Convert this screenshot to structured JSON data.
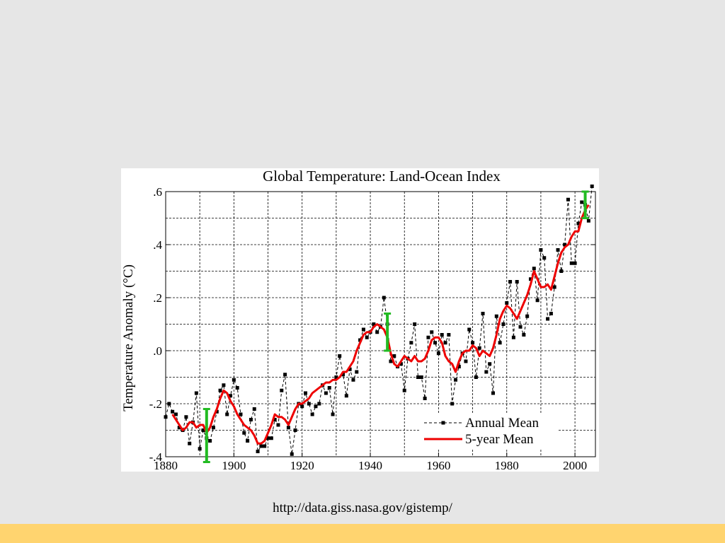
{
  "slide": {
    "source_url": "http://data.giss.nasa.gov/gistemp/",
    "footer_color": "#ffd46f",
    "background_color": "#e6e6e6"
  },
  "chart_data": {
    "type": "line",
    "title": "Global Temperature: Land-Ocean Index",
    "xlabel": "",
    "ylabel": "Temperature Anomaly (°C)",
    "xlim": [
      1880,
      2006
    ],
    "ylim": [
      -0.4,
      0.6
    ],
    "x_ticks": [
      1880,
      1900,
      1920,
      1940,
      1960,
      1980,
      2000
    ],
    "x_tick_labels": [
      "1880",
      "1900",
      "1920",
      "1940",
      "1960",
      "1980",
      "2000"
    ],
    "y_ticks": [
      -0.4,
      -0.2,
      0.0,
      0.2,
      0.4,
      0.6
    ],
    "y_tick_labels": [
      "-.4",
      "-.2",
      ".0",
      ".2",
      ".4",
      ".6"
    ],
    "grid": true,
    "legend_position": "bottom-right",
    "series": [
      {
        "name": "Annual Mean",
        "style": "dashed-black-square-markers",
        "color": "#000000",
        "x": [
          1880,
          1881,
          1882,
          1883,
          1884,
          1885,
          1886,
          1887,
          1888,
          1889,
          1890,
          1891,
          1892,
          1893,
          1894,
          1895,
          1896,
          1897,
          1898,
          1899,
          1900,
          1901,
          1902,
          1903,
          1904,
          1905,
          1906,
          1907,
          1908,
          1909,
          1910,
          1911,
          1912,
          1913,
          1914,
          1915,
          1916,
          1917,
          1918,
          1919,
          1920,
          1921,
          1922,
          1923,
          1924,
          1925,
          1926,
          1927,
          1928,
          1929,
          1930,
          1931,
          1932,
          1933,
          1934,
          1935,
          1936,
          1937,
          1938,
          1939,
          1940,
          1941,
          1942,
          1943,
          1944,
          1945,
          1946,
          1947,
          1948,
          1949,
          1950,
          1951,
          1952,
          1953,
          1954,
          1955,
          1956,
          1957,
          1958,
          1959,
          1960,
          1961,
          1962,
          1963,
          1964,
          1965,
          1966,
          1967,
          1968,
          1969,
          1970,
          1971,
          1972,
          1973,
          1974,
          1975,
          1976,
          1977,
          1978,
          1979,
          1980,
          1981,
          1982,
          1983,
          1984,
          1985,
          1986,
          1987,
          1988,
          1989,
          1990,
          1991,
          1992,
          1993,
          1994,
          1995,
          1996,
          1997,
          1998,
          1999,
          2000,
          2001,
          2002,
          2003,
          2004,
          2005
        ],
        "values": [
          -0.25,
          -0.2,
          -0.23,
          -0.24,
          -0.29,
          -0.3,
          -0.25,
          -0.35,
          -0.27,
          -0.16,
          -0.37,
          -0.3,
          -0.33,
          -0.34,
          -0.29,
          -0.23,
          -0.15,
          -0.13,
          -0.24,
          -0.17,
          -0.11,
          -0.14,
          -0.24,
          -0.31,
          -0.34,
          -0.26,
          -0.22,
          -0.38,
          -0.36,
          -0.36,
          -0.33,
          -0.33,
          -0.26,
          -0.28,
          -0.15,
          -0.09,
          -0.29,
          -0.39,
          -0.3,
          -0.2,
          -0.21,
          -0.16,
          -0.2,
          -0.24,
          -0.21,
          -0.2,
          -0.13,
          -0.16,
          -0.14,
          -0.24,
          -0.1,
          -0.02,
          -0.09,
          -0.17,
          -0.07,
          -0.11,
          -0.08,
          0.04,
          0.08,
          0.05,
          0.07,
          0.1,
          0.07,
          0.09,
          0.2,
          0.1,
          -0.04,
          -0.02,
          -0.06,
          -0.05,
          -0.15,
          -0.03,
          0.03,
          0.1,
          -0.1,
          -0.1,
          -0.18,
          0.05,
          0.07,
          0.03,
          -0.01,
          0.06,
          0.03,
          0.06,
          -0.2,
          -0.11,
          -0.06,
          -0.01,
          -0.04,
          0.08,
          0.03,
          -0.1,
          0.01,
          0.14,
          -0.08,
          -0.05,
          -0.16,
          0.13,
          0.03,
          0.1,
          0.18,
          0.26,
          0.05,
          0.26,
          0.09,
          0.06,
          0.13,
          0.27,
          0.31,
          0.19,
          0.38,
          0.35,
          0.12,
          0.14,
          0.24,
          0.38,
          0.3,
          0.4,
          0.57,
          0.33,
          0.33,
          0.48,
          0.56,
          0.55,
          0.49,
          0.62
        ]
      },
      {
        "name": "5-year Mean",
        "style": "solid-red-thick",
        "color": "#ee0000",
        "x": [
          1882,
          1883,
          1884,
          1885,
          1886,
          1887,
          1888,
          1889,
          1890,
          1891,
          1892,
          1893,
          1894,
          1895,
          1896,
          1897,
          1898,
          1899,
          1900,
          1901,
          1902,
          1903,
          1904,
          1905,
          1906,
          1907,
          1908,
          1909,
          1910,
          1911,
          1912,
          1913,
          1914,
          1915,
          1916,
          1917,
          1918,
          1919,
          1920,
          1921,
          1922,
          1923,
          1924,
          1925,
          1926,
          1927,
          1928,
          1929,
          1930,
          1931,
          1932,
          1933,
          1934,
          1935,
          1936,
          1937,
          1938,
          1939,
          1940,
          1941,
          1942,
          1943,
          1944,
          1945,
          1946,
          1947,
          1948,
          1949,
          1950,
          1951,
          1952,
          1953,
          1954,
          1955,
          1956,
          1957,
          1958,
          1959,
          1960,
          1961,
          1962,
          1963,
          1964,
          1965,
          1966,
          1967,
          1968,
          1969,
          1970,
          1971,
          1972,
          1973,
          1974,
          1975,
          1976,
          1977,
          1978,
          1979,
          1980,
          1981,
          1982,
          1983,
          1984,
          1985,
          1986,
          1987,
          1988,
          1989,
          1990,
          1991,
          1992,
          1993,
          1994,
          1995,
          1996,
          1997,
          1998,
          1999,
          2000,
          2001,
          2002,
          2003,
          2004
        ],
        "values": [
          -0.24,
          -0.26,
          -0.28,
          -0.3,
          -0.29,
          -0.27,
          -0.27,
          -0.29,
          -0.28,
          -0.28,
          -0.31,
          -0.29,
          -0.25,
          -0.22,
          -0.18,
          -0.15,
          -0.16,
          -0.19,
          -0.21,
          -0.24,
          -0.26,
          -0.28,
          -0.29,
          -0.3,
          -0.32,
          -0.35,
          -0.35,
          -0.34,
          -0.31,
          -0.28,
          -0.24,
          -0.25,
          -0.25,
          -0.26,
          -0.28,
          -0.25,
          -0.22,
          -0.2,
          -0.2,
          -0.19,
          -0.18,
          -0.16,
          -0.15,
          -0.14,
          -0.13,
          -0.12,
          -0.12,
          -0.11,
          -0.11,
          -0.1,
          -0.08,
          -0.08,
          -0.06,
          -0.04,
          0.0,
          0.03,
          0.06,
          0.07,
          0.07,
          0.09,
          0.1,
          0.09,
          0.08,
          0.05,
          -0.01,
          -0.05,
          -0.06,
          -0.04,
          -0.02,
          -0.03,
          -0.04,
          -0.02,
          -0.04,
          -0.04,
          -0.03,
          0.0,
          0.04,
          0.05,
          0.05,
          0.03,
          -0.02,
          -0.04,
          -0.05,
          -0.08,
          -0.04,
          -0.01,
          0.0,
          0.0,
          0.02,
          0.01,
          -0.02,
          0.0,
          -0.01,
          -0.02,
          0.01,
          0.06,
          0.12,
          0.15,
          0.17,
          0.16,
          0.14,
          0.12,
          0.15,
          0.18,
          0.21,
          0.25,
          0.3,
          0.27,
          0.24,
          0.24,
          0.25,
          0.23,
          0.28,
          0.33,
          0.37,
          0.39,
          0.4,
          0.43,
          0.45,
          0.45,
          0.5,
          0.53,
          0.55
        ]
      }
    ],
    "error_bars": [
      {
        "x": 1892,
        "low": -0.42,
        "high": -0.22,
        "color": "#22bb22"
      },
      {
        "x": 1945,
        "low": 0.0,
        "high": 0.14,
        "color": "#22bb22"
      },
      {
        "x": 2003,
        "low": 0.5,
        "high": 0.6,
        "color": "#22bb22"
      }
    ]
  }
}
